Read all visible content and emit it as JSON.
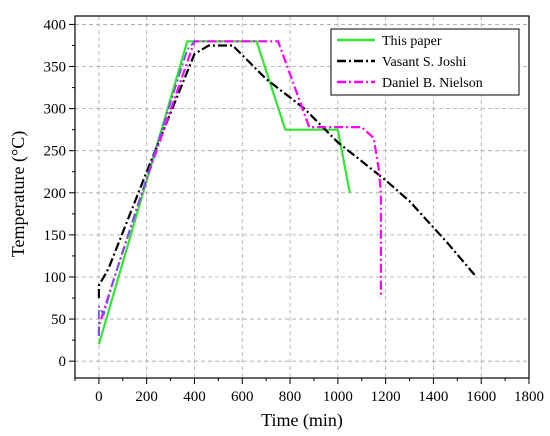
{
  "chart_data": {
    "type": "line",
    "title": "",
    "xlabel": "Time (min)",
    "ylabel": "Temperature (°C)",
    "xlim": [
      -100,
      1800
    ],
    "ylim": [
      -20,
      410
    ],
    "x_ticks": [
      0,
      200,
      400,
      600,
      800,
      1000,
      1200,
      1400,
      1600,
      1800
    ],
    "y_ticks": [
      0,
      50,
      100,
      150,
      200,
      250,
      300,
      350,
      400
    ],
    "grid": true,
    "legend_position": "top-right",
    "series": [
      {
        "name": "This paper",
        "color": "#33e533",
        "style": "solid",
        "points": [
          [
            0,
            20
          ],
          [
            370,
            380
          ],
          [
            660,
            380
          ],
          [
            780,
            275
          ],
          [
            1000,
            275
          ],
          [
            1050,
            200
          ]
        ]
      },
      {
        "name": "Vasant S. Joshi",
        "color": "#000000",
        "style": "dashdot",
        "points": [
          [
            0,
            75
          ],
          [
            0,
            90
          ],
          [
            40,
            110
          ],
          [
            200,
            225
          ],
          [
            400,
            365
          ],
          [
            460,
            375
          ],
          [
            560,
            375
          ],
          [
            700,
            335
          ],
          [
            860,
            300
          ],
          [
            1000,
            260
          ],
          [
            1200,
            215
          ],
          [
            1300,
            190
          ],
          [
            1460,
            140
          ],
          [
            1580,
            100
          ]
        ]
      },
      {
        "name": "Daniel B. Nielson",
        "color": "#ff00ff",
        "style": "dashdot",
        "points": [
          [
            0,
            30
          ],
          [
            0,
            42
          ],
          [
            60,
            95
          ],
          [
            180,
            200
          ],
          [
            400,
            380
          ],
          [
            750,
            380
          ],
          [
            880,
            278
          ],
          [
            1100,
            278
          ],
          [
            1150,
            265
          ],
          [
            1170,
            230
          ],
          [
            1180,
            200
          ],
          [
            1180,
            165
          ],
          [
            1180,
            75
          ]
        ]
      },
      {
        "name": "",
        "color": "#6a5ae0",
        "style": "dashdot",
        "points": [
          [
            0,
            30
          ],
          [
            0,
            65
          ],
          [
            20,
            55
          ],
          [
            60,
            95
          ],
          [
            180,
            200
          ],
          [
            370,
            370
          ],
          [
            400,
            380
          ]
        ]
      }
    ]
  }
}
